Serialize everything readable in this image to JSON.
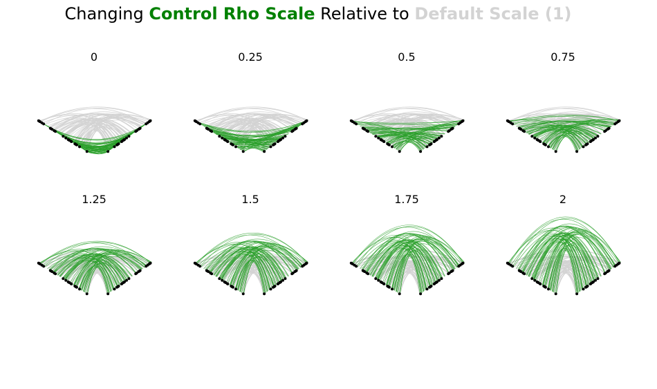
{
  "title": {
    "prefix": "Changing ",
    "highlight": "Control Rho Scale",
    "middle": " Relative to ",
    "reference": "Default Scale (1)",
    "highlight_color": "#008000",
    "reference_color": "#d3d3d3"
  },
  "colors": {
    "default_arc": "#d3d3d3",
    "control_arc": "#2ca02c",
    "node": "#000000"
  },
  "panels": [
    {
      "label": "0",
      "scale": 0
    },
    {
      "label": "0.25",
      "scale": 0.25
    },
    {
      "label": "0.5",
      "scale": 0.5
    },
    {
      "label": "0.75",
      "scale": 0.75
    },
    {
      "label": "1.25",
      "scale": 1.25
    },
    {
      "label": "1.5",
      "scale": 1.5
    },
    {
      "label": "1.75",
      "scale": 1.75
    },
    {
      "label": "2",
      "scale": 2
    }
  ]
}
